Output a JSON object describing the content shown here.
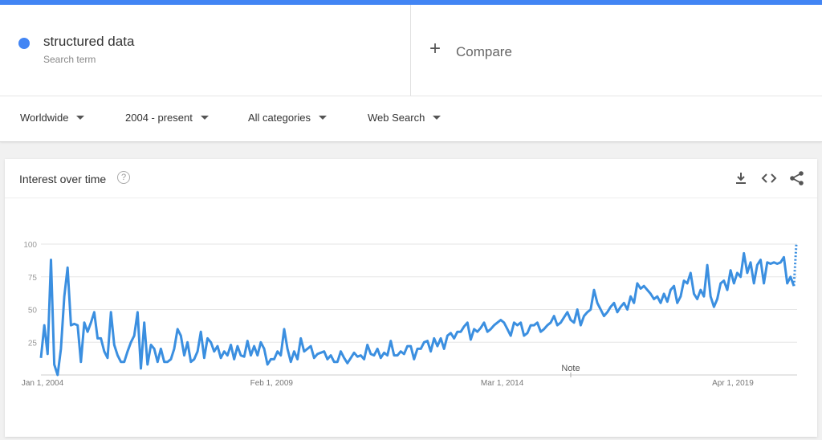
{
  "search": {
    "term": "structured data",
    "term_sub": "Search term",
    "term_color": "#4285f4",
    "compare_plus": "+",
    "compare_label": "Compare"
  },
  "filters": {
    "region": "Worldwide",
    "time": "2004 - present",
    "category": "All categories",
    "property": "Web Search"
  },
  "card": {
    "title": "Interest over time",
    "help": "?",
    "icons": [
      "download-icon",
      "embed-icon",
      "share-icon"
    ]
  },
  "chart_data": {
    "type": "line",
    "title": "",
    "xlabel": "",
    "ylabel": "",
    "ylim": [
      0,
      100
    ],
    "yticks": [
      "25",
      "50",
      "75",
      "100"
    ],
    "xticks": [
      "Jan 1, 2004",
      "Feb 1, 2009",
      "Mar 1, 2014",
      "Apr 1, 2019"
    ],
    "annotation": "Note",
    "line_color": "#3b8fe0",
    "grid": true,
    "series": [
      {
        "values": [
          13,
          38,
          16,
          88,
          8,
          0,
          20,
          60,
          82,
          38,
          39,
          38,
          10,
          40,
          33,
          40,
          48,
          28,
          28,
          18,
          13,
          48,
          23,
          15,
          10,
          10,
          18,
          25,
          30,
          48,
          5,
          40,
          8,
          23,
          20,
          10,
          20,
          10,
          10,
          12,
          20,
          35,
          30,
          15,
          25,
          10,
          12,
          18,
          33,
          13,
          28,
          25,
          18,
          22,
          13,
          18,
          15,
          23,
          12,
          22,
          15,
          14,
          26,
          15,
          22,
          15,
          25,
          20,
          8,
          12,
          12,
          18,
          15,
          35,
          20,
          10,
          18,
          12,
          28,
          18,
          20,
          22,
          13,
          16,
          17,
          18,
          12,
          15,
          10,
          10,
          18,
          13,
          9,
          13,
          17,
          14,
          15,
          12,
          23,
          16,
          15,
          20,
          13,
          17,
          15,
          26,
          15,
          15,
          18,
          16,
          22,
          22,
          12,
          20,
          20,
          25,
          26,
          18,
          28,
          22,
          28,
          20,
          30,
          32,
          28,
          33,
          33,
          37,
          40,
          27,
          35,
          33,
          36,
          40,
          33,
          35,
          38,
          40,
          42,
          40,
          35,
          30,
          40,
          38,
          40,
          30,
          32,
          38,
          38,
          40,
          33,
          35,
          38,
          40,
          45,
          38,
          40,
          44,
          48,
          42,
          40,
          50,
          38,
          45,
          48,
          50,
          65,
          55,
          50,
          45,
          48,
          52,
          55,
          48,
          52,
          55,
          50,
          60,
          55,
          70,
          66,
          68,
          65,
          62,
          58,
          60,
          55,
          62,
          56,
          65,
          68,
          55,
          60,
          72,
          70,
          78,
          62,
          58,
          65,
          60,
          84,
          60,
          52,
          58,
          70,
          72,
          65,
          80,
          70,
          78,
          75,
          93,
          78,
          86,
          70,
          84,
          88,
          70,
          86,
          85,
          86,
          85,
          86,
          90,
          70,
          75,
          68
        ]
      }
    ]
  }
}
